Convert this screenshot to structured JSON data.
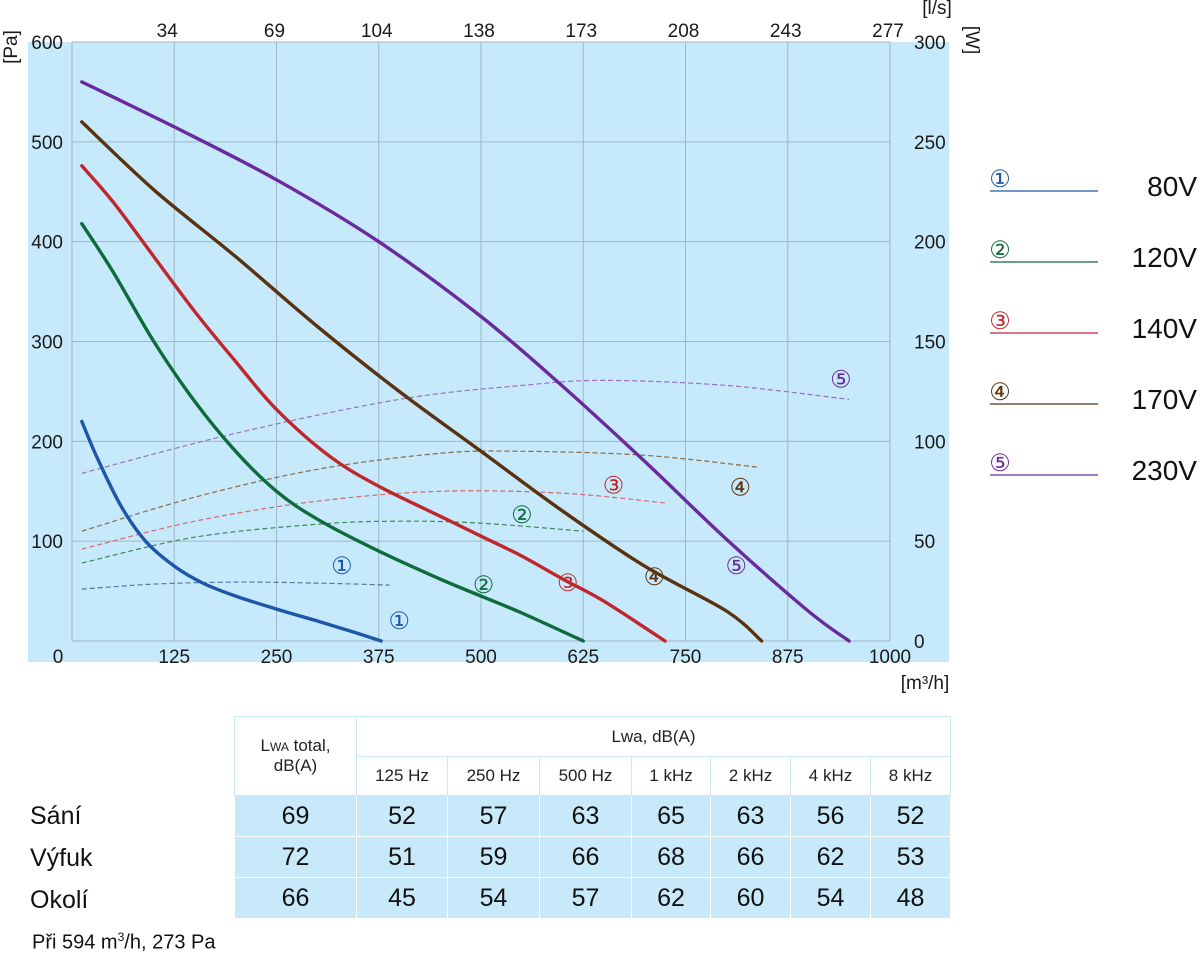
{
  "chart_data": {
    "type": "line",
    "x_axis": {
      "unit_label": "[m³/h]",
      "min": 0,
      "max": 1000,
      "ticks": [
        0,
        125,
        250,
        375,
        500,
        625,
        750,
        875,
        1000
      ]
    },
    "x2_axis": {
      "unit_label": "[l/s]",
      "ticks": [
        "34",
        "69",
        "104",
        "138",
        "173",
        "208",
        "243",
        "277"
      ]
    },
    "y_axis": {
      "unit_label": "[Pa]",
      "min": 0,
      "max": 600,
      "ticks": [
        0,
        100,
        200,
        300,
        400,
        500,
        600
      ]
    },
    "y2_axis": {
      "unit_label": "[W]",
      "min": 0,
      "max": 300,
      "ticks": [
        0,
        50,
        100,
        150,
        200,
        250,
        300
      ]
    },
    "grid": true,
    "legend_placement": "right",
    "pressure_series": [
      {
        "name": "80V",
        "marker": "①",
        "color": "#1f57a8",
        "x": [
          12,
          30,
          60,
          90,
          125,
          160,
          200,
          250,
          300,
          340,
          378
        ],
        "y": [
          220,
          185,
          135,
          100,
          75,
          58,
          45,
          32,
          20,
          10,
          0
        ]
      },
      {
        "name": "120V",
        "marker": "②",
        "color": "#0f6b3c",
        "x": [
          12,
          50,
          100,
          150,
          200,
          250,
          300,
          375,
          450,
          500,
          550,
          625
        ],
        "y": [
          418,
          370,
          300,
          240,
          190,
          150,
          122,
          90,
          62,
          45,
          28,
          0
        ]
      },
      {
        "name": "140V",
        "marker": "③",
        "color": "#c0272d",
        "x": [
          12,
          50,
          100,
          150,
          200,
          250,
          315,
          375,
          450,
          500,
          550,
          600,
          650,
          725
        ],
        "y": [
          476,
          440,
          385,
          330,
          280,
          232,
          185,
          155,
          125,
          105,
          85,
          62,
          40,
          0
        ]
      },
      {
        "name": "170V",
        "marker": "④",
        "color": "#5a320f",
        "x": [
          12,
          100,
          200,
          300,
          400,
          500,
          600,
          700,
          800,
          843
        ],
        "y": [
          520,
          452,
          385,
          315,
          250,
          190,
          130,
          75,
          30,
          0
        ]
      },
      {
        "name": "230V",
        "marker": "⑤",
        "color": "#6a2a9c",
        "x": [
          12,
          125,
          250,
          375,
          500,
          600,
          700,
          800,
          900,
          950
        ],
        "y": [
          560,
          515,
          462,
          400,
          325,
          255,
          180,
          102,
          30,
          0
        ]
      }
    ],
    "power_series": [
      {
        "name": "80V",
        "color": "#5577aa",
        "x": [
          12,
          100,
          200,
          300,
          388
        ],
        "y_watts": [
          26,
          28.5,
          29.5,
          29,
          28
        ]
      },
      {
        "name": "120V",
        "color": "#3d8a5a",
        "x": [
          12,
          150,
          300,
          400,
          500,
          625
        ],
        "y_watts": [
          39,
          52,
          58.5,
          60,
          59,
          55
        ]
      },
      {
        "name": "140V",
        "color": "#d06b6e",
        "x": [
          12,
          150,
          300,
          450,
          600,
          728
        ],
        "y_watts": [
          46,
          60,
          70,
          75,
          74,
          69
        ]
      },
      {
        "name": "170V",
        "color": "#8a6a45",
        "x": [
          12,
          150,
          300,
          450,
          550,
          700,
          840
        ],
        "y_watts": [
          55,
          72,
          86,
          94,
          95,
          93,
          87
        ]
      },
      {
        "name": "230V",
        "color": "#9a70c0",
        "x": [
          12,
          200,
          400,
          550,
          650,
          800,
          950
        ],
        "y_watts": [
          84,
          104,
          121,
          128,
          130.5,
          128,
          121
        ]
      }
    ],
    "markers": [
      {
        "text": "①",
        "color": "#1f57a8",
        "x": 400,
        "y": 20
      },
      {
        "text": "②",
        "color": "#0f6b3c",
        "x": 503,
        "y": 56
      },
      {
        "text": "③",
        "color": "#c0272d",
        "x": 606,
        "y": 58
      },
      {
        "text": "④",
        "color": "#5a320f",
        "x": 712,
        "y": 64
      },
      {
        "text": "⑤",
        "color": "#6a2a9c",
        "x": 812,
        "y": 75
      },
      {
        "text": "①",
        "color": "#1f57a8",
        "x": 330,
        "y": 75
      },
      {
        "text": "②",
        "color": "#0f6b3c",
        "x": 550,
        "y": 126
      },
      {
        "text": "③",
        "color": "#c0272d",
        "x": 662,
        "y": 156
      },
      {
        "text": "④",
        "color": "#5a320f",
        "x": 817,
        "y": 154
      },
      {
        "text": "⑤",
        "color": "#6a2a9c",
        "x": 940,
        "y": 262
      }
    ],
    "legend": [
      {
        "marker": "①",
        "label": "80V",
        "color": "#1f57a8"
      },
      {
        "marker": "②",
        "label": "120V",
        "color": "#0f6b3c"
      },
      {
        "marker": "③",
        "label": "140V",
        "color": "#c0272d"
      },
      {
        "marker": "④",
        "label": "170V",
        "color": "#5a320f"
      },
      {
        "marker": "⑤",
        "label": "230V",
        "color": "#6a2a9c"
      }
    ]
  },
  "colors": {
    "plot_background": "#c6e9fb",
    "grid": "#9fb8c8",
    "table_fill": "#c8e9fa"
  },
  "noise_table": {
    "header_total": "LWA total,",
    "header_total_unit": "dB(A)",
    "header_group": "Lwa, dB(A)",
    "bands": [
      "125 Hz",
      "250 Hz",
      "500 Hz",
      "1 kHz",
      "2 kHz",
      "4 kHz",
      "8 kHz"
    ],
    "rows": [
      {
        "label": "Sání",
        "total": "69",
        "values": [
          "52",
          "57",
          "63",
          "65",
          "63",
          "56",
          "52"
        ]
      },
      {
        "label": "Výfuk",
        "total": "72",
        "values": [
          "51",
          "59",
          "66",
          "68",
          "66",
          "62",
          "53"
        ]
      },
      {
        "label": "Okolí",
        "total": "66",
        "values": [
          "45",
          "54",
          "57",
          "62",
          "60",
          "54",
          "48"
        ]
      }
    ]
  },
  "footnote": "Při 594 m³/h, 273 Pa"
}
